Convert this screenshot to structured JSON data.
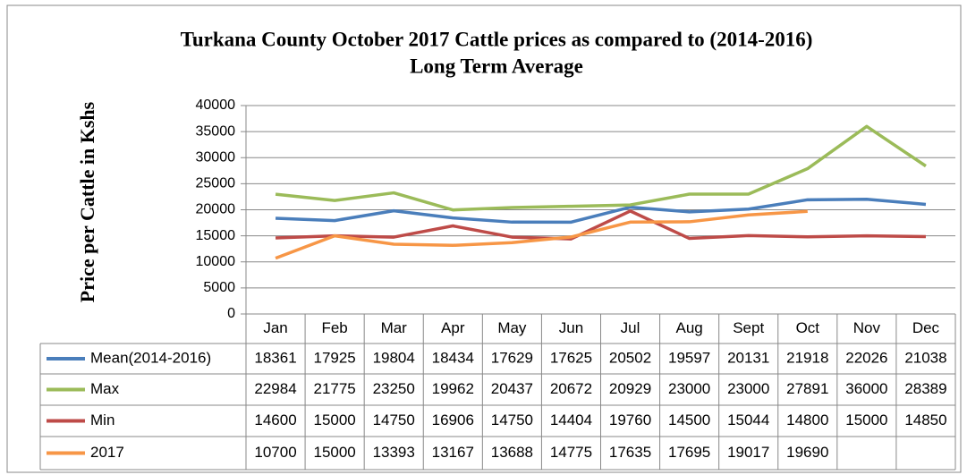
{
  "chart_data": {
    "type": "line",
    "title": [
      "Turkana County  October 2017 Cattle  prices as compared to (2014-2016)",
      "Long Term Average"
    ],
    "y_label": "Price per  Cattle in Kshs",
    "categories": [
      "Jan",
      "Feb",
      "Mar",
      "Apr",
      "May",
      "Jun",
      "Jul",
      "Aug",
      "Sept",
      "Oct",
      "Nov",
      "Dec"
    ],
    "series": [
      {
        "name": "Mean(2014-2016)",
        "color": "#4a7ebb",
        "values": [
          18361,
          17925,
          19804,
          18434,
          17629,
          17625,
          20502,
          19597,
          20131,
          21918,
          22026,
          21038
        ]
      },
      {
        "name": "Max",
        "color": "#9bbb59",
        "values": [
          22984,
          21775,
          23250,
          19962,
          20437,
          20672,
          20929,
          23000,
          23000,
          27891,
          36000,
          28389
        ]
      },
      {
        "name": "Min",
        "color": "#be4b48",
        "values": [
          14600,
          15000,
          14750,
          16906,
          14750,
          14404,
          19760,
          14500,
          15044,
          14800,
          15000,
          14850
        ]
      },
      {
        "name": "2017",
        "color": "#f79646",
        "values": [
          10700,
          15000,
          13393,
          13167,
          13688,
          14775,
          17635,
          17695,
          19017,
          19690,
          null,
          null
        ]
      }
    ],
    "ylim": [
      0,
      40000
    ],
    "yticks": [
      0,
      5000,
      10000,
      15000,
      20000,
      25000,
      30000,
      35000,
      40000
    ],
    "grid": true,
    "legend": "table"
  }
}
